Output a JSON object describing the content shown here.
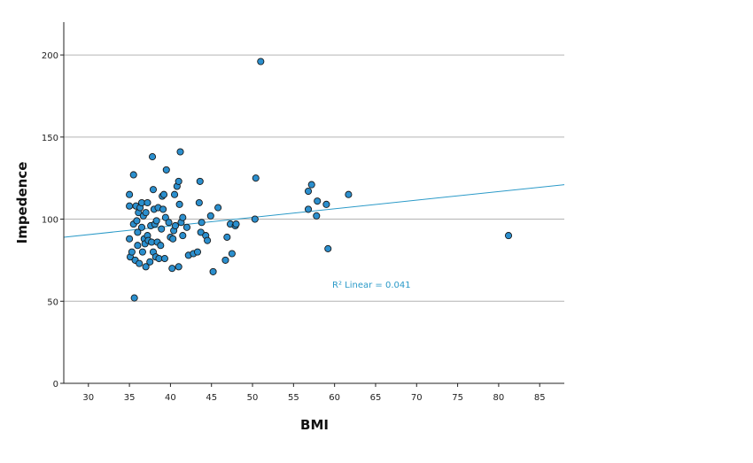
{
  "chart_data": {
    "type": "scatter",
    "xlabel": "BMI",
    "ylabel": "Impedence",
    "xlim": [
      27,
      88
    ],
    "ylim": [
      0,
      220
    ],
    "x_ticks": [
      30,
      35,
      40,
      45,
      50,
      55,
      60,
      65,
      70,
      75,
      80,
      85
    ],
    "y_ticks": [
      0,
      50,
      100,
      150,
      200
    ],
    "grid": "horizontal",
    "colors": {
      "marker_fill": "#2b8fce",
      "marker_stroke": "#1a1a1a",
      "fit_line": "#2b9ac8",
      "grid": "#b4b4b4",
      "axis": "#222222",
      "annotation": "#2b9ac8"
    },
    "fit_line": {
      "label": "R² Linear = 0.041",
      "x": [
        27,
        88
      ],
      "y": [
        89,
        121
      ]
    },
    "series": [
      {
        "points": [
          [
            35.0,
            115
          ],
          [
            35.0,
            108
          ],
          [
            35.0,
            88
          ],
          [
            35.1,
            77
          ],
          [
            35.3,
            80
          ],
          [
            35.5,
            127
          ],
          [
            35.5,
            97
          ],
          [
            35.6,
            52
          ],
          [
            35.7,
            75
          ],
          [
            35.8,
            108
          ],
          [
            35.9,
            99
          ],
          [
            36.0,
            84
          ],
          [
            36.0,
            92
          ],
          [
            36.1,
            104
          ],
          [
            36.2,
            73
          ],
          [
            36.3,
            107
          ],
          [
            36.5,
            95
          ],
          [
            36.5,
            110
          ],
          [
            36.6,
            80
          ],
          [
            36.7,
            102
          ],
          [
            36.8,
            88
          ],
          [
            36.9,
            85
          ],
          [
            37.0,
            104
          ],
          [
            37.0,
            71
          ],
          [
            37.2,
            90
          ],
          [
            37.2,
            110
          ],
          [
            37.3,
            87
          ],
          [
            37.5,
            74
          ],
          [
            37.6,
            96
          ],
          [
            37.7,
            86
          ],
          [
            37.8,
            138
          ],
          [
            37.9,
            118
          ],
          [
            37.9,
            80
          ],
          [
            38.0,
            106
          ],
          [
            38.1,
            97
          ],
          [
            38.2,
            77
          ],
          [
            38.3,
            99
          ],
          [
            38.4,
            86
          ],
          [
            38.5,
            107
          ],
          [
            38.6,
            76
          ],
          [
            38.8,
            84
          ],
          [
            38.9,
            94
          ],
          [
            39.0,
            114
          ],
          [
            39.1,
            106
          ],
          [
            39.2,
            115
          ],
          [
            39.3,
            76
          ],
          [
            39.4,
            101
          ],
          [
            39.5,
            130
          ],
          [
            39.8,
            98
          ],
          [
            40.0,
            89
          ],
          [
            40.2,
            70
          ],
          [
            40.3,
            88
          ],
          [
            40.4,
            93
          ],
          [
            40.5,
            115
          ],
          [
            40.6,
            96
          ],
          [
            40.8,
            120
          ],
          [
            41.0,
            123
          ],
          [
            41.0,
            71
          ],
          [
            41.1,
            109
          ],
          [
            41.2,
            141
          ],
          [
            41.3,
            98
          ],
          [
            41.5,
            101
          ],
          [
            41.5,
            90
          ],
          [
            42.0,
            95
          ],
          [
            42.2,
            78
          ],
          [
            42.8,
            79
          ],
          [
            43.3,
            80
          ],
          [
            43.5,
            110
          ],
          [
            43.6,
            123
          ],
          [
            43.7,
            92
          ],
          [
            43.8,
            98
          ],
          [
            44.3,
            90
          ],
          [
            44.5,
            87
          ],
          [
            44.9,
            102
          ],
          [
            45.2,
            68
          ],
          [
            45.8,
            107
          ],
          [
            46.7,
            75
          ],
          [
            46.9,
            89
          ],
          [
            47.3,
            97
          ],
          [
            47.5,
            79
          ],
          [
            47.9,
            96
          ],
          [
            48.0,
            97
          ],
          [
            50.3,
            100
          ],
          [
            50.4,
            125
          ],
          [
            51.0,
            196
          ],
          [
            56.8,
            117
          ],
          [
            56.8,
            106
          ],
          [
            57.2,
            121
          ],
          [
            57.8,
            102
          ],
          [
            57.9,
            111
          ],
          [
            59.0,
            109
          ],
          [
            59.2,
            82
          ],
          [
            61.7,
            115
          ],
          [
            81.2,
            90
          ]
        ]
      }
    ]
  }
}
